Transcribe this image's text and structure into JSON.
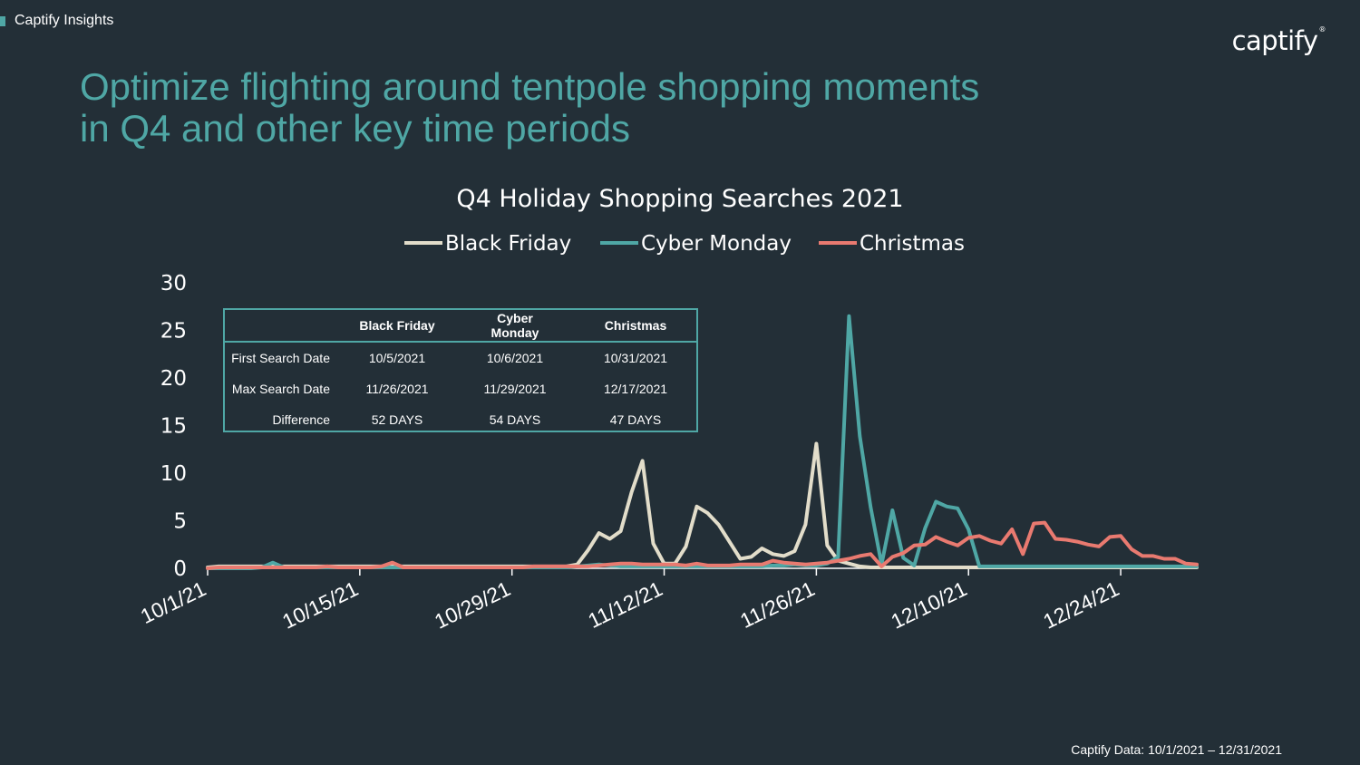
{
  "header": {
    "tag": "Captify Insights",
    "logo": "captify",
    "logo_mark": "®",
    "title_lines": [
      "Optimize flighting around tentpole shopping moments",
      "in Q4 and other key time periods"
    ]
  },
  "colors": {
    "background": "#232f37",
    "accent": "#4fa7a5",
    "black_friday": "#e2ddca",
    "cyber_monday": "#4fa7a5",
    "christmas": "#e97a70"
  },
  "chart_data": {
    "type": "line",
    "title": "Q4 Holiday Shopping Searches 2021",
    "xlabel": "",
    "ylabel": "",
    "ylim": [
      0,
      30
    ],
    "y_ticks": [
      0,
      5,
      10,
      15,
      20,
      25,
      30
    ],
    "x_tick_labels": [
      "10/1/21",
      "10/15/21",
      "10/29/21",
      "11/12/21",
      "11/26/21",
      "12/10/21",
      "12/24/21"
    ],
    "x_start": "10/1/21",
    "x_end": "12/31/21",
    "legend_position": "top-center",
    "grid": false,
    "series": [
      {
        "name": "Black Friday",
        "color": "#e2ddca",
        "values": [
          0.1,
          0.2,
          0.2,
          0.2,
          0.2,
          0.2,
          0.2,
          0.2,
          0.2,
          0.2,
          0.2,
          0.2,
          0.2,
          0.2,
          0.2,
          0.2,
          0.2,
          0.2,
          0.2,
          0.2,
          0.2,
          0.2,
          0.2,
          0.2,
          0.2,
          0.2,
          0.2,
          0.2,
          0.2,
          0.2,
          0.2,
          0.2,
          0.2,
          0.2,
          0.4,
          1.9,
          3.7,
          3.1,
          3.9,
          8.0,
          11.3,
          2.6,
          0.5,
          0.5,
          2.3,
          6.5,
          5.8,
          4.6,
          2.8,
          1.0,
          1.2,
          2.1,
          1.5,
          1.3,
          1.8,
          4.6,
          13.1,
          2.4,
          0.8,
          0.5,
          0.2,
          0.1,
          0.1,
          0.1,
          0.1,
          0.1,
          0.1,
          0.1,
          0.1,
          0.1,
          0.1,
          0.1,
          0.1,
          0.1,
          0.1,
          0.1,
          0.1,
          0.1,
          0.1,
          0.1,
          0.1,
          0.1,
          0.1,
          0.1,
          0.1,
          0.1,
          0.1,
          0.1,
          0.1,
          0.1,
          0.1,
          0.1
        ]
      },
      {
        "name": "Cyber Monday",
        "color": "#4fa7a5",
        "values": [
          0,
          0,
          0,
          0,
          0,
          0.1,
          0.6,
          0.1,
          0.1,
          0.1,
          0.1,
          0.1,
          0.1,
          0.1,
          0.1,
          0.1,
          0.1,
          0.1,
          0.1,
          0.1,
          0.1,
          0.1,
          0.1,
          0.1,
          0.1,
          0.1,
          0.1,
          0.1,
          0.1,
          0.1,
          0.1,
          0.1,
          0.1,
          0.1,
          0.2,
          0.3,
          0.4,
          0.3,
          0.2,
          0.2,
          0.2,
          0.2,
          0.2,
          0.2,
          0.2,
          0.2,
          0.2,
          0.2,
          0.2,
          0.2,
          0.2,
          0.2,
          0.3,
          0.3,
          0.4,
          0.3,
          0.3,
          0.5,
          1.2,
          26.5,
          13.9,
          6.4,
          0.4,
          6.1,
          1.1,
          0.3,
          4.2,
          7.0,
          6.5,
          6.3,
          4.1,
          0.2,
          0.2,
          0.2,
          0.2,
          0.2,
          0.2,
          0.2,
          0.2,
          0.2,
          0.2,
          0.2,
          0.2,
          0.2,
          0.2,
          0.2,
          0.2,
          0.2,
          0.2,
          0.2,
          0.2,
          0.2
        ]
      },
      {
        "name": "Christmas",
        "color": "#e97a70",
        "values": [
          0,
          0.1,
          0.1,
          0.1,
          0.1,
          0.1,
          0.1,
          0.1,
          0.1,
          0.1,
          0.1,
          0.2,
          0.1,
          0.1,
          0.1,
          0.1,
          0.2,
          0.6,
          0.1,
          0.1,
          0.1,
          0.1,
          0.1,
          0.1,
          0.1,
          0.1,
          0.1,
          0.1,
          0.1,
          0.1,
          0.2,
          0.2,
          0.2,
          0.2,
          0.2,
          0.2,
          0.3,
          0.4,
          0.5,
          0.5,
          0.4,
          0.4,
          0.4,
          0.4,
          0.3,
          0.5,
          0.3,
          0.3,
          0.3,
          0.4,
          0.4,
          0.4,
          0.8,
          0.6,
          0.5,
          0.4,
          0.5,
          0.6,
          0.8,
          1.0,
          1.3,
          1.5,
          0.2,
          1.2,
          1.6,
          2.4,
          2.5,
          3.3,
          2.8,
          2.4,
          3.2,
          3.4,
          2.9,
          2.6,
          4.1,
          1.5,
          4.7,
          4.8,
          3.1,
          3.0,
          2.8,
          2.5,
          2.3,
          3.3,
          3.4,
          2.0,
          1.3,
          1.3,
          1.0,
          1.0,
          0.5,
          0.4
        ]
      }
    ]
  },
  "inset_table": {
    "headers": [
      "",
      "Black Friday",
      "Cyber Monday",
      "Christmas"
    ],
    "rows": [
      {
        "label": "First Search Date",
        "values": [
          "10/5/2021",
          "10/6/2021",
          "10/31/2021"
        ]
      },
      {
        "label": "Max Search Date",
        "values": [
          "11/26/2021",
          "11/29/2021",
          "12/17/2021"
        ]
      },
      {
        "label": "Difference",
        "values": [
          "52 DAYS",
          "54 DAYS",
          "47 DAYS"
        ]
      }
    ]
  },
  "footer": {
    "source": "Captify Data: 10/1/2021 – 12/31/2021"
  }
}
